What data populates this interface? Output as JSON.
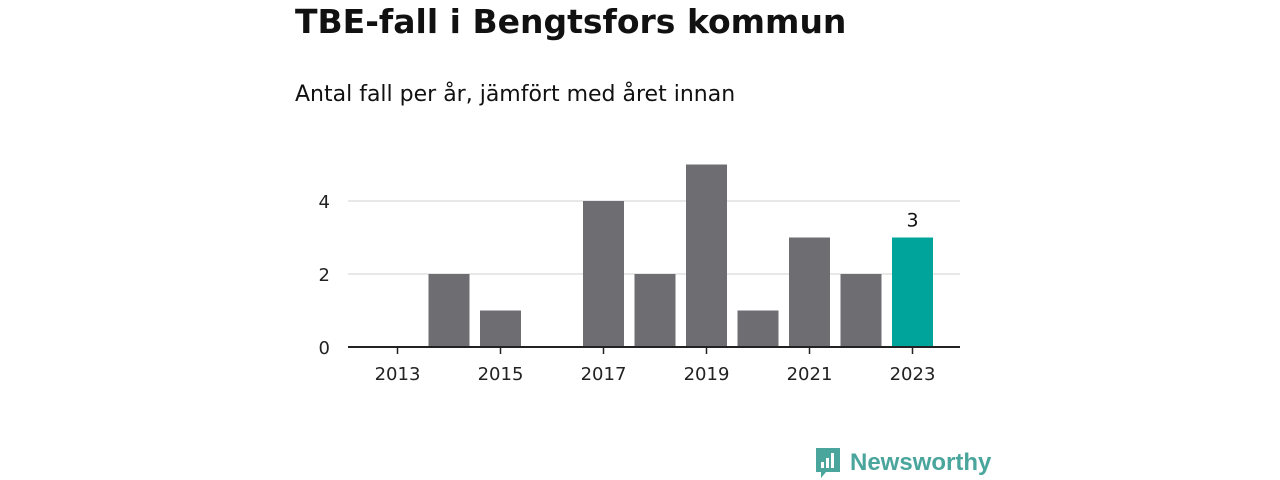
{
  "chart_data": {
    "type": "bar",
    "title": "TBE-fall i Bengtsfors kommun",
    "subtitle": "Antal fall per år, jämfört med året innan",
    "categories": [
      "2013",
      "2014",
      "2015",
      "2016",
      "2017",
      "2018",
      "2019",
      "2020",
      "2021",
      "2022",
      "2023"
    ],
    "x_tick_labels": [
      "2013",
      "2015",
      "2017",
      "2019",
      "2021",
      "2023"
    ],
    "values": [
      0,
      2,
      1,
      0,
      4,
      2,
      5,
      1,
      3,
      2,
      3
    ],
    "highlight": {
      "category": "2023",
      "label": "3"
    },
    "y_ticks": [
      "0",
      "2",
      "4"
    ],
    "ylim": [
      0,
      5
    ],
    "xlabel": "",
    "ylabel": "",
    "grid": true,
    "bar_color": "#6d6d72",
    "highlight_color": "#00a49a"
  },
  "brand": {
    "name": "Newsworthy",
    "icon": "newsworthy-logo-icon",
    "color": "#4aa59c"
  }
}
